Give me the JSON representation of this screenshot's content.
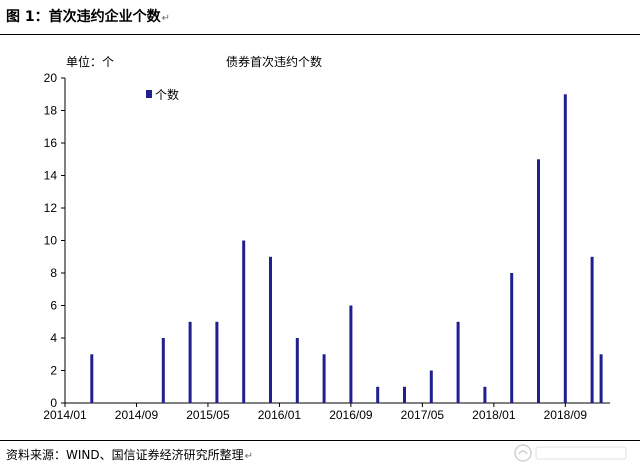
{
  "figure": {
    "title": "图 1：首次违约企业个数",
    "para_mark": "↵",
    "source": "资料来源：WIND、国信证券经济研究所整理",
    "source_mark": "↵"
  },
  "chart_data": {
    "type": "bar",
    "title": "债券首次违约个数",
    "unit_label": "单位：个",
    "legend": {
      "labels": [
        "个数"
      ],
      "position": "top-left"
    },
    "series": [
      {
        "name": "个数",
        "color": "#1f1f8f",
        "values": [
          3,
          0,
          4,
          5,
          5,
          10,
          9,
          4,
          3,
          6,
          1,
          1,
          2,
          5,
          1,
          8,
          15,
          19,
          9,
          3
        ]
      }
    ],
    "x_ticks": [
      "2014/01",
      "2014/09",
      "2015/05",
      "2016/01",
      "2016/09",
      "2017/05",
      "2018/01",
      "2018/09"
    ],
    "x_range_months": [
      "2014/01",
      "2019/02"
    ],
    "bar_months": [
      "2014/04",
      "2014/08",
      "2014/12",
      "2015/03",
      "2015/06",
      "2015/09",
      "2015/12",
      "2016/03",
      "2016/06",
      "2016/09",
      "2016/12",
      "2017/03",
      "2017/06",
      "2017/09",
      "2017/12",
      "2018/03",
      "2018/06",
      "2018/09",
      "2018/12",
      "2019/01"
    ],
    "ylim": [
      0,
      20
    ],
    "y_ticks": [
      0,
      2,
      4,
      6,
      8,
      10,
      12,
      14,
      16,
      18,
      20
    ],
    "grid": false
  }
}
